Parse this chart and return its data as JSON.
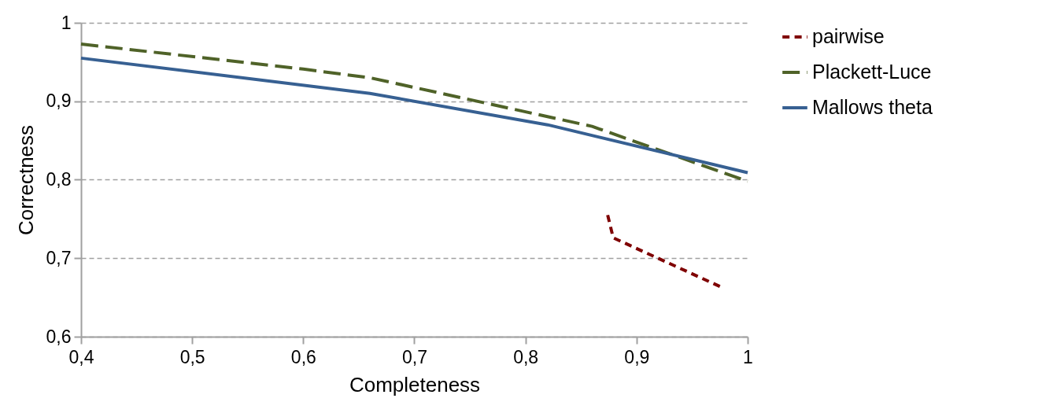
{
  "chart_data": {
    "type": "line",
    "xlabel": "Completeness",
    "ylabel": "Correctness",
    "xlim": [
      0.4,
      1
    ],
    "ylim": [
      0.6,
      1
    ],
    "xticks": [
      {
        "value": 0.4,
        "label": "0,4"
      },
      {
        "value": 0.5,
        "label": "0,5"
      },
      {
        "value": 0.6,
        "label": "0,6"
      },
      {
        "value": 0.7,
        "label": "0,7"
      },
      {
        "value": 0.8,
        "label": "0,8"
      },
      {
        "value": 0.9,
        "label": "0,9"
      },
      {
        "value": 1,
        "label": "1"
      }
    ],
    "yticks": [
      {
        "value": 0.6,
        "label": "0,6"
      },
      {
        "value": 0.7,
        "label": "0,7"
      },
      {
        "value": 0.8,
        "label": "0,8"
      },
      {
        "value": 0.9,
        "label": "0,9"
      },
      {
        "value": 1,
        "label": "1"
      }
    ],
    "grid": "y",
    "legend": "right",
    "marker": "none",
    "series": [
      {
        "name": "pairwise",
        "color": "#7f0000",
        "line_style": "dotted",
        "x": [
          0.874,
          0.879,
          0.975
        ],
        "values": [
          0.755,
          0.726,
          0.664
        ]
      },
      {
        "name": "Plackett-Luce",
        "color": "#4f6228",
        "line_style": "dashed",
        "x": [
          0.4,
          0.6,
          0.66,
          0.86,
          1
        ],
        "values": [
          0.973,
          0.941,
          0.93,
          0.868,
          0.798
        ]
      },
      {
        "name": "Mallows theta",
        "color": "#376092",
        "line_style": "solid",
        "x": [
          0.4,
          0.66,
          0.82,
          1
        ],
        "values": [
          0.955,
          0.91,
          0.87,
          0.809
        ]
      }
    ]
  }
}
